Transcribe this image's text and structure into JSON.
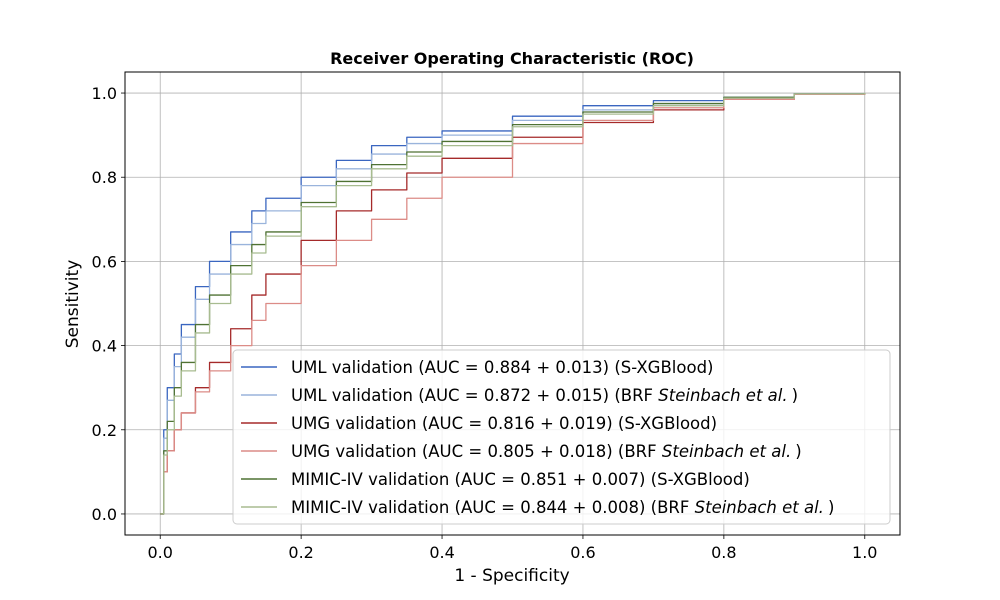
{
  "chart_data": {
    "type": "line",
    "title": "Receiver Operating Characteristic (ROC)",
    "xlabel": "1 - Specificity",
    "ylabel": "Sensitivity",
    "xlim": [
      -0.05,
      1.05
    ],
    "ylim": [
      -0.05,
      1.05
    ],
    "xticks": [
      "0.0",
      "0.2",
      "0.4",
      "0.6",
      "0.8",
      "1.0"
    ],
    "yticks": [
      "0.0",
      "0.2",
      "0.4",
      "0.6",
      "0.8",
      "1.0"
    ],
    "grid": true,
    "legend_position": "lower-right",
    "series": [
      {
        "name": "UML validation (AUC = 0.884 + 0.013) (S-XGBlood)",
        "label_main": "UML validation (AUC = 0.884 + 0.013) (S-XGBlood)",
        "label_italic": "",
        "label_tail": "",
        "color": "#3a66c0",
        "x": [
          0,
          0.005,
          0.01,
          0.02,
          0.03,
          0.05,
          0.07,
          0.1,
          0.13,
          0.15,
          0.2,
          0.25,
          0.3,
          0.35,
          0.4,
          0.5,
          0.6,
          0.7,
          0.8,
          0.9,
          1.0
        ],
        "y": [
          0,
          0.2,
          0.3,
          0.38,
          0.45,
          0.54,
          0.6,
          0.67,
          0.72,
          0.75,
          0.8,
          0.84,
          0.875,
          0.895,
          0.91,
          0.945,
          0.97,
          0.982,
          0.99,
          0.998,
          1.0
        ]
      },
      {
        "name": "UML validation (AUC = 0.872 + 0.015) (BRF Steinbach et al.)",
        "label_main": "UML validation (AUC = 0.872 + 0.015) (BRF ",
        "label_italic": "Steinbach et al.",
        "label_tail": ")",
        "color": "#9ab4dc",
        "x": [
          0,
          0.005,
          0.01,
          0.02,
          0.03,
          0.05,
          0.07,
          0.1,
          0.13,
          0.15,
          0.2,
          0.25,
          0.3,
          0.35,
          0.4,
          0.5,
          0.6,
          0.7,
          0.8,
          0.9,
          1.0
        ],
        "y": [
          0,
          0.18,
          0.27,
          0.35,
          0.42,
          0.51,
          0.57,
          0.64,
          0.69,
          0.72,
          0.78,
          0.82,
          0.855,
          0.88,
          0.9,
          0.935,
          0.96,
          0.975,
          0.99,
          0.998,
          1.0
        ]
      },
      {
        "name": "UMG validation (AUC = 0.816 + 0.019) (S-XGBlood)",
        "label_main": "UMG validation (AUC = 0.816 + 0.019) (S-XGBlood)",
        "label_italic": "",
        "label_tail": "",
        "color": "#a52a2a",
        "x": [
          0,
          0.005,
          0.01,
          0.02,
          0.03,
          0.05,
          0.07,
          0.1,
          0.13,
          0.15,
          0.2,
          0.25,
          0.3,
          0.35,
          0.4,
          0.5,
          0.6,
          0.7,
          0.8,
          0.9,
          1.0
        ],
        "y": [
          0,
          0.1,
          0.15,
          0.2,
          0.24,
          0.3,
          0.36,
          0.44,
          0.52,
          0.57,
          0.65,
          0.72,
          0.77,
          0.81,
          0.845,
          0.895,
          0.93,
          0.96,
          0.985,
          0.997,
          1.0
        ]
      },
      {
        "name": "UMG validation (AUC = 0.805 + 0.018) (BRF Steinbach et al.)",
        "label_main": "UMG validation (AUC = 0.805 + 0.018) (BRF ",
        "label_italic": "Steinbach et al.",
        "label_tail": ")",
        "color": "#dc8c87",
        "x": [
          0,
          0.005,
          0.01,
          0.02,
          0.03,
          0.05,
          0.07,
          0.1,
          0.13,
          0.15,
          0.2,
          0.25,
          0.3,
          0.35,
          0.4,
          0.5,
          0.6,
          0.7,
          0.8,
          0.9,
          1.0
        ],
        "y": [
          0,
          0.1,
          0.15,
          0.2,
          0.24,
          0.29,
          0.34,
          0.4,
          0.46,
          0.5,
          0.59,
          0.65,
          0.7,
          0.75,
          0.8,
          0.88,
          0.935,
          0.965,
          0.985,
          0.997,
          1.0
        ]
      },
      {
        "name": "MIMIC-IV validation (AUC = 0.851 + 0.007) (S-XGBlood)",
        "label_main": "MIMIC-IV validation (AUC = 0.851 + 0.007) (S-XGBlood)",
        "label_italic": "",
        "label_tail": "",
        "color": "#4f7233",
        "x": [
          0,
          0.005,
          0.01,
          0.02,
          0.03,
          0.05,
          0.07,
          0.1,
          0.13,
          0.15,
          0.2,
          0.25,
          0.3,
          0.35,
          0.4,
          0.5,
          0.6,
          0.7,
          0.8,
          0.9,
          1.0
        ],
        "y": [
          0,
          0.15,
          0.22,
          0.3,
          0.36,
          0.45,
          0.52,
          0.59,
          0.64,
          0.67,
          0.74,
          0.79,
          0.83,
          0.86,
          0.885,
          0.925,
          0.955,
          0.975,
          0.99,
          0.998,
          1.0
        ]
      },
      {
        "name": "MIMIC-IV validation (AUC = 0.844 + 0.008) (BRF Steinbach et al.)",
        "label_main": "MIMIC-IV validation (AUC = 0.844 + 0.008) (BRF ",
        "label_italic": "Steinbach et al.",
        "label_tail": ")",
        "color": "#a8bc90",
        "x": [
          0,
          0.005,
          0.01,
          0.02,
          0.03,
          0.05,
          0.07,
          0.1,
          0.13,
          0.15,
          0.2,
          0.25,
          0.3,
          0.35,
          0.4,
          0.5,
          0.6,
          0.7,
          0.8,
          0.9,
          1.0
        ],
        "y": [
          0,
          0.14,
          0.2,
          0.28,
          0.34,
          0.43,
          0.5,
          0.57,
          0.62,
          0.66,
          0.73,
          0.78,
          0.82,
          0.85,
          0.875,
          0.92,
          0.95,
          0.97,
          0.988,
          0.998,
          1.0
        ]
      }
    ]
  }
}
